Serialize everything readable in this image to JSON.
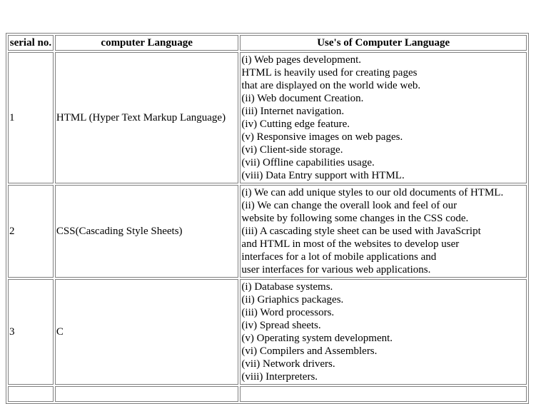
{
  "table": {
    "headers": {
      "serial": "serial no.",
      "language": "computer Language",
      "uses": "Use's of Computer Language"
    },
    "rows": [
      {
        "serial": "1",
        "language": "HTML (Hyper Text Markup Language)",
        "uses": [
          "(i) Web pages development.",
          "HTML is heavily used for creating pages",
          "that are displayed on the world wide web.",
          "(ii) Web document Creation.",
          "(iii) Internet navigation.",
          "(iv) Cutting edge feature.",
          "(v) Responsive images on web pages.",
          "(vi) Client-side storage.",
          "(vii) Offline capabilities usage.",
          "(viii) Data Entry support with HTML."
        ]
      },
      {
        "serial": "2",
        "language": "CSS(Cascading Style Sheets)",
        "uses": [
          "(i) We can add unique styles to our old documents of HTML.",
          "(ii) We can change the overall look and feel of our",
          "website by following some changes in the CSS code.",
          "(iii) A cascading style sheet can be used with JavaScript",
          "and HTML in most of the websites to develop user",
          "interfaces for a lot of mobile applications and",
          "user interfaces for various web applications."
        ]
      },
      {
        "serial": "3",
        "language": "C",
        "uses": [
          "(i) Database systems.",
          "(ii) Griaphics packages.",
          "(iii) Word processors.",
          "(iv) Spread sheets.",
          "(v) Operating system development.",
          "(vi) Compilers and Assemblers.",
          "(vii) Network drivers.",
          "(viii) Interpreters."
        ]
      }
    ]
  }
}
